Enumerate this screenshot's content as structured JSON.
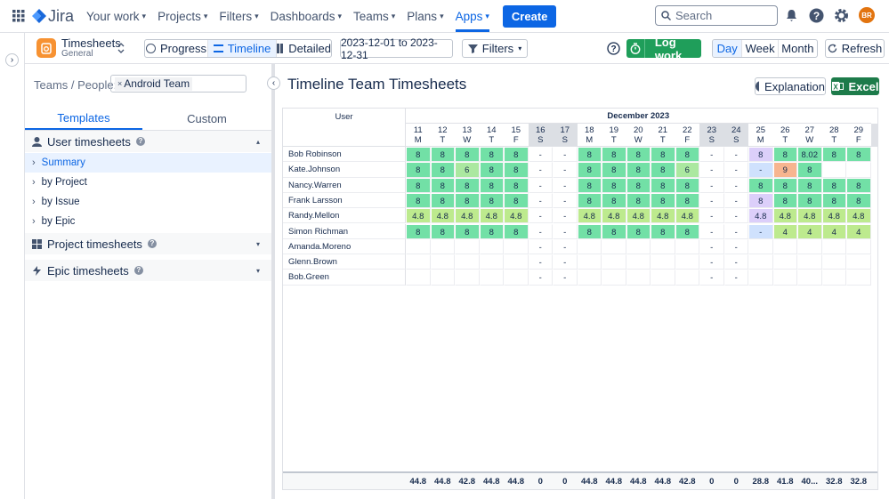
{
  "nav": {
    "logo": "Jira",
    "items": [
      "Your work",
      "Projects",
      "Filters",
      "Dashboards",
      "Teams",
      "Plans",
      "Apps"
    ],
    "active_item": 6,
    "create": "Create",
    "search": "Search",
    "avatar": "BR"
  },
  "toolbar": {
    "app_name": "Timesheets",
    "app_sub": "General",
    "views": [
      "Progress",
      "Timeline",
      "Detailed"
    ],
    "active_view": 1,
    "date_range": "2023-12-01 to 2023-12-31",
    "filters": "Filters",
    "log_work": "Log work",
    "periods": [
      "Day",
      "Week",
      "Month"
    ],
    "active_period": 0,
    "refresh": "Refresh"
  },
  "sidebar": {
    "teams_label": "Teams / People:",
    "team_tag": "Android Team",
    "tabs": [
      "Templates",
      "Custom"
    ],
    "active_tab": 0,
    "sections": [
      {
        "title": "User timesheets",
        "items": [
          "Summary",
          "by Project",
          "by Issue",
          "by Epic"
        ],
        "active_item": 0
      },
      {
        "title": "Project timesheets"
      },
      {
        "title": "Epic timesheets"
      }
    ]
  },
  "main": {
    "title": "Timeline Team Timesheets",
    "explanation": "Explanation",
    "excel": "Excel"
  },
  "table": {
    "user_header": "User",
    "month": "December 2023",
    "days": [
      {
        "day": "11",
        "weekday": "M"
      },
      {
        "day": "12",
        "weekday": "T"
      },
      {
        "day": "13",
        "weekday": "W"
      },
      {
        "day": "14",
        "weekday": "T"
      },
      {
        "day": "15",
        "weekday": "F"
      },
      {
        "day": "16",
        "weekday": "S",
        "weekend": true
      },
      {
        "day": "17",
        "weekday": "S",
        "weekend": true
      },
      {
        "day": "18",
        "weekday": "M"
      },
      {
        "day": "19",
        "weekday": "T"
      },
      {
        "day": "20",
        "weekday": "W"
      },
      {
        "day": "21",
        "weekday": "T"
      },
      {
        "day": "22",
        "weekday": "F"
      },
      {
        "day": "23",
        "weekday": "S",
        "weekend": true
      },
      {
        "day": "24",
        "weekday": "S",
        "weekend": true
      },
      {
        "day": "25",
        "weekday": "M"
      },
      {
        "day": "26",
        "weekday": "T"
      },
      {
        "day": "27",
        "weekday": "W"
      },
      {
        "day": "28",
        "weekday": "T"
      },
      {
        "day": "29",
        "weekday": "F"
      }
    ],
    "palette": {
      "g": "#72e0a6",
      "l": "#abe8a0",
      "y": "#bdea8e",
      "p": "#dccffa",
      "b": "#cfe1fd",
      "o": "#f7b58f",
      "w": "#ffffff",
      ".": "#ffffff"
    },
    "rows": [
      {
        "name": "Bob Robinson",
        "tones": "gggggwwgggggwwpgggg",
        "cells": [
          "8",
          "8",
          "8",
          "8",
          "8",
          "-",
          "-",
          "8",
          "8",
          "8",
          "8",
          "8",
          "-",
          "-",
          "8",
          "8",
          "8.02",
          "8",
          "8"
        ]
      },
      {
        "name": "Kate.Johnson",
        "tones": "gglggwwgggglwwbog..",
        "cells": [
          "8",
          "8",
          "6",
          "8",
          "8",
          "-",
          "-",
          "8",
          "8",
          "8",
          "8",
          "6",
          "-",
          "-",
          "-",
          "9",
          "8",
          null,
          null
        ]
      },
      {
        "name": "Nancy.Warren",
        "tones": "gggggwwgggggwwggggg",
        "cells": [
          "8",
          "8",
          "8",
          "8",
          "8",
          "-",
          "-",
          "8",
          "8",
          "8",
          "8",
          "8",
          "-",
          "-",
          "8",
          "8",
          "8",
          "8",
          "8"
        ]
      },
      {
        "name": "Frank Larsson",
        "tones": "gggggwwgggggwwpgggg",
        "cells": [
          "8",
          "8",
          "8",
          "8",
          "8",
          "-",
          "-",
          "8",
          "8",
          "8",
          "8",
          "8",
          "-",
          "-",
          "8",
          "8",
          "8",
          "8",
          "8"
        ]
      },
      {
        "name": "Randy.Mellon",
        "tones": "yyyyywwyyyyywwpyyyy",
        "cells": [
          "4.8",
          "4.8",
          "4.8",
          "4.8",
          "4.8",
          "-",
          "-",
          "4.8",
          "4.8",
          "4.8",
          "4.8",
          "4.8",
          "-",
          "-",
          "4.8",
          "4.8",
          "4.8",
          "4.8",
          "4.8"
        ]
      },
      {
        "name": "Simon Richman",
        "tones": "gggggwwgggggwwbyyyy",
        "cells": [
          "8",
          "8",
          "8",
          "8",
          "8",
          "-",
          "-",
          "8",
          "8",
          "8",
          "8",
          "8",
          "-",
          "-",
          "-",
          "4",
          "4",
          "4",
          "4"
        ]
      },
      {
        "name": "Amanda.Moreno",
        "tones": ".....ww.....ww.....",
        "cells": [
          null,
          null,
          null,
          null,
          null,
          "-",
          "-",
          null,
          null,
          null,
          null,
          null,
          "-",
          "-",
          null,
          null,
          null,
          null,
          null
        ]
      },
      {
        "name": "Glenn.Brown",
        "tones": ".....ww.....ww.....",
        "cells": [
          null,
          null,
          null,
          null,
          null,
          "-",
          "-",
          null,
          null,
          null,
          null,
          null,
          "-",
          "-",
          null,
          null,
          null,
          null,
          null
        ]
      },
      {
        "name": "Bob.Green",
        "tones": ".....ww.....ww.....",
        "cells": [
          null,
          null,
          null,
          null,
          null,
          "-",
          "-",
          null,
          null,
          null,
          null,
          null,
          "-",
          "-",
          null,
          null,
          null,
          null,
          null
        ]
      }
    ],
    "totals": [
      "44.8",
      "44.8",
      "42.8",
      "44.8",
      "44.8",
      "0",
      "0",
      "44.8",
      "44.8",
      "44.8",
      "44.8",
      "42.8",
      "0",
      "0",
      "28.8",
      "41.8",
      "40...",
      "32.8",
      "32.8"
    ]
  }
}
